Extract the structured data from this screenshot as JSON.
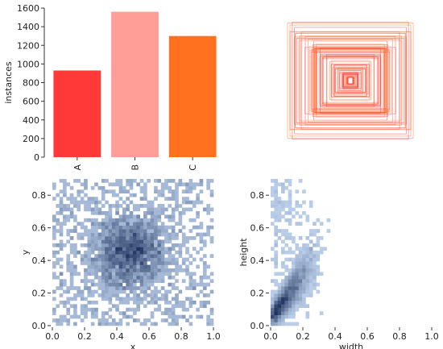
{
  "chart_data": [
    {
      "type": "bar",
      "title": "",
      "xlabel": "",
      "ylabel": "instances",
      "categories": [
        "A",
        "B",
        "C"
      ],
      "values": [
        930,
        1560,
        1300
      ],
      "colors": [
        "#ff3838",
        "#ff9d97",
        "#ff701f"
      ],
      "ylim": [
        0,
        1600
      ],
      "yticks": [
        "0",
        "200",
        "400",
        "600",
        "800",
        "1000",
        "1200",
        "1400",
        "1600"
      ],
      "grid": false
    },
    {
      "type": "other",
      "description_kind": "overlaid centered bounding boxes",
      "box_count": 90,
      "colors": [
        "#ff3838",
        "#ff9d97",
        "#ff701f"
      ],
      "axes_visible": false
    },
    {
      "type": "heatmap",
      "xlabel": "x",
      "ylabel": "y",
      "xlim": [
        0.0,
        1.0
      ],
      "ylim": [
        0.0,
        0.9
      ],
      "xticks": [
        "0.0",
        "0.2",
        "0.4",
        "0.6",
        "0.8",
        "1.0"
      ],
      "yticks": [
        "0.0",
        "0.2",
        "0.4",
        "0.6",
        "0.8"
      ],
      "center": [
        0.48,
        0.45
      ],
      "spread": [
        0.16,
        0.16
      ],
      "color": "#1f77b4"
    },
    {
      "type": "heatmap",
      "xlabel": "width",
      "ylabel": "height",
      "xlim": [
        0.0,
        1.0
      ],
      "ylim": [
        0.0,
        0.9
      ],
      "xticks": [
        "0.0",
        "0.2",
        "0.4",
        "0.6",
        "0.8",
        "1.0"
      ],
      "yticks": [
        "0.0",
        "0.2",
        "0.4",
        "0.6",
        "0.8"
      ],
      "center": [
        0.08,
        0.18
      ],
      "spread": [
        0.12,
        0.14
      ],
      "color": "#1f77b4"
    }
  ]
}
